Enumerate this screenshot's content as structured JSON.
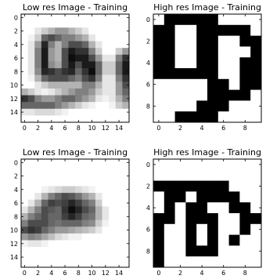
{
  "chart_data": [
    {
      "type": "heatmap",
      "title": "Low res Image - Training",
      "xlabel": "",
      "ylabel": "",
      "colormap": "gray",
      "dark_color": "#000000",
      "light_color": "#ffffff",
      "xlim": [
        -0.5,
        15.5
      ],
      "ylim": [
        15.5,
        -0.5
      ],
      "xticks": [
        0,
        2,
        4,
        6,
        8,
        10,
        12,
        14
      ],
      "yticks": [
        0,
        2,
        4,
        6,
        8,
        10,
        12,
        14
      ],
      "values": [
        [
          0.0,
          0.0,
          0.0,
          0.0,
          0.0,
          0.0,
          0.0,
          0.0,
          0.0,
          0.0,
          0.0,
          0.0,
          0.0,
          0.0,
          0.0,
          0.0
        ],
        [
          0.0,
          0.0,
          0.0,
          0.0,
          0.0,
          0.0,
          0.0,
          0.0,
          0.0,
          0.0,
          0.0,
          0.0,
          0.0,
          0.0,
          0.0,
          0.0
        ],
        [
          0.0,
          0.0,
          0.1,
          0.2,
          0.3,
          0.4,
          0.4,
          0.3,
          0.2,
          0.1,
          0.0,
          0.0,
          0.0,
          0.0,
          0.0,
          0.0
        ],
        [
          0.0,
          0.05,
          0.2,
          0.6,
          0.7,
          0.6,
          0.5,
          0.5,
          0.4,
          0.3,
          0.1,
          0.0,
          0.0,
          0.0,
          0.0,
          0.0
        ],
        [
          0.0,
          0.1,
          0.4,
          0.85,
          0.5,
          0.3,
          0.5,
          0.7,
          0.7,
          0.6,
          0.3,
          0.1,
          0.0,
          0.0,
          0.0,
          0.0
        ],
        [
          0.0,
          0.1,
          0.5,
          0.9,
          0.4,
          0.3,
          0.7,
          0.9,
          0.8,
          0.8,
          0.5,
          0.2,
          0.0,
          0.0,
          0.2,
          0.4
        ],
        [
          0.0,
          0.1,
          0.5,
          0.9,
          0.4,
          0.3,
          0.7,
          0.95,
          0.9,
          0.9,
          0.7,
          0.4,
          0.1,
          0.1,
          0.5,
          0.8
        ],
        [
          0.0,
          0.1,
          0.5,
          0.9,
          0.45,
          0.35,
          0.7,
          0.9,
          0.7,
          0.9,
          0.9,
          0.6,
          0.2,
          0.2,
          0.6,
          0.9
        ],
        [
          0.0,
          0.1,
          0.45,
          0.85,
          0.8,
          0.7,
          0.8,
          0.85,
          0.6,
          0.8,
          0.95,
          0.6,
          0.2,
          0.2,
          0.6,
          0.9
        ],
        [
          0.0,
          0.05,
          0.3,
          0.6,
          0.7,
          0.7,
          0.7,
          0.6,
          0.5,
          0.7,
          0.8,
          0.5,
          0.1,
          0.1,
          0.5,
          0.8
        ],
        [
          0.0,
          0.0,
          0.1,
          0.2,
          0.3,
          0.3,
          0.3,
          0.3,
          0.3,
          0.5,
          0.5,
          0.3,
          0.1,
          0.1,
          0.4,
          0.7
        ],
        [
          0.3,
          0.2,
          0.1,
          0.05,
          0.1,
          0.2,
          0.3,
          0.4,
          0.5,
          0.5,
          0.4,
          0.2,
          0.1,
          0.1,
          0.4,
          0.6
        ],
        [
          0.8,
          0.7,
          0.5,
          0.4,
          0.4,
          0.5,
          0.6,
          0.6,
          0.5,
          0.4,
          0.3,
          0.1,
          0.05,
          0.1,
          0.3,
          0.5
        ],
        [
          0.6,
          0.6,
          0.6,
          0.6,
          0.6,
          0.5,
          0.4,
          0.3,
          0.2,
          0.1,
          0.05,
          0.0,
          0.0,
          0.05,
          0.2,
          0.3
        ],
        [
          0.1,
          0.1,
          0.15,
          0.15,
          0.15,
          0.1,
          0.05,
          0.0,
          0.0,
          0.0,
          0.0,
          0.0,
          0.0,
          0.0,
          0.0,
          0.0
        ],
        [
          0.0,
          0.0,
          0.0,
          0.0,
          0.0,
          0.0,
          0.0,
          0.0,
          0.0,
          0.0,
          0.0,
          0.0,
          0.0,
          0.0,
          0.0,
          0.0
        ]
      ]
    },
    {
      "type": "heatmap",
      "title": "High res Image - Training",
      "xlabel": "",
      "ylabel": "",
      "colormap": "gray",
      "dark_color": "#000000",
      "light_color": "#ffffff",
      "xlim": [
        -0.5,
        9.5
      ],
      "ylim": [
        9.5,
        -0.5
      ],
      "xticks": [
        0,
        2,
        4,
        6,
        8
      ],
      "yticks": [
        0,
        2,
        4,
        6,
        8
      ],
      "values": [
        [
          0,
          1,
          1,
          1,
          1,
          1,
          0,
          0,
          0,
          0
        ],
        [
          1,
          1,
          0,
          0,
          1,
          1,
          1,
          1,
          1,
          0
        ],
        [
          1,
          1,
          0,
          0,
          1,
          1,
          0,
          0,
          1,
          1
        ],
        [
          1,
          1,
          0,
          0,
          1,
          1,
          0,
          0,
          0,
          1
        ],
        [
          1,
          1,
          0,
          0,
          1,
          1,
          0,
          0,
          1,
          1
        ],
        [
          1,
          1,
          1,
          1,
          1,
          1,
          0,
          0,
          1,
          1
        ],
        [
          0,
          0,
          0,
          0,
          0,
          1,
          1,
          0,
          1,
          1
        ],
        [
          0,
          0,
          0,
          0,
          0,
          1,
          1,
          1,
          1,
          0
        ],
        [
          0,
          0,
          0,
          0,
          1,
          1,
          1,
          0,
          0,
          0
        ],
        [
          0,
          0,
          1,
          1,
          1,
          1,
          0,
          0,
          0,
          0
        ]
      ]
    },
    {
      "type": "heatmap",
      "title": "Low res Image - Training",
      "xlabel": "",
      "ylabel": "",
      "colormap": "gray",
      "dark_color": "#000000",
      "light_color": "#ffffff",
      "xlim": [
        -0.5,
        15.5
      ],
      "ylim": [
        15.5,
        -0.5
      ],
      "xticks": [
        0,
        2,
        4,
        6,
        8,
        10,
        12,
        14
      ],
      "yticks": [
        0,
        2,
        4,
        6,
        8,
        10,
        12,
        14
      ],
      "values": [
        [
          0.0,
          0.0,
          0.0,
          0.0,
          0.0,
          0.0,
          0.0,
          0.0,
          0.0,
          0.0,
          0.0,
          0.0,
          0.0,
          0.0,
          0.0,
          0.0
        ],
        [
          0.0,
          0.0,
          0.0,
          0.0,
          0.0,
          0.0,
          0.0,
          0.0,
          0.0,
          0.0,
          0.0,
          0.0,
          0.0,
          0.0,
          0.0,
          0.0
        ],
        [
          0.0,
          0.0,
          0.0,
          0.0,
          0.0,
          0.0,
          0.0,
          0.0,
          0.0,
          0.0,
          0.0,
          0.0,
          0.0,
          0.0,
          0.0,
          0.0
        ],
        [
          0.0,
          0.0,
          0.0,
          0.0,
          0.0,
          0.0,
          0.0,
          0.0,
          0.0,
          0.0,
          0.0,
          0.0,
          0.0,
          0.0,
          0.0,
          0.0
        ],
        [
          0.0,
          0.0,
          0.0,
          0.05,
          0.1,
          0.15,
          0.2,
          0.2,
          0.15,
          0.1,
          0.05,
          0.0,
          0.0,
          0.0,
          0.0,
          0.0
        ],
        [
          0.0,
          0.0,
          0.1,
          0.3,
          0.5,
          0.6,
          0.7,
          0.65,
          0.55,
          0.4,
          0.3,
          0.1,
          0.0,
          0.0,
          0.0,
          0.0
        ],
        [
          0.0,
          0.1,
          0.3,
          0.6,
          0.75,
          0.7,
          0.75,
          0.85,
          0.75,
          0.6,
          0.5,
          0.2,
          0.0,
          0.0,
          0.0,
          0.0
        ],
        [
          0.1,
          0.3,
          0.5,
          0.7,
          0.65,
          0.6,
          0.8,
          0.95,
          0.85,
          0.7,
          0.6,
          0.3,
          0.1,
          0.0,
          0.0,
          0.0
        ],
        [
          0.3,
          0.5,
          0.6,
          0.7,
          0.6,
          0.6,
          0.75,
          0.85,
          0.75,
          0.6,
          0.55,
          0.3,
          0.1,
          0.0,
          0.0,
          0.0
        ],
        [
          0.5,
          0.7,
          0.7,
          0.7,
          0.6,
          0.55,
          0.6,
          0.6,
          0.6,
          0.5,
          0.45,
          0.2,
          0.05,
          0.0,
          0.0,
          0.0
        ],
        [
          0.7,
          0.8,
          0.75,
          0.6,
          0.5,
          0.4,
          0.4,
          0.35,
          0.3,
          0.25,
          0.2,
          0.1,
          0.0,
          0.0,
          0.0,
          0.0
        ],
        [
          0.4,
          0.5,
          0.45,
          0.35,
          0.25,
          0.15,
          0.1,
          0.05,
          0.05,
          0.0,
          0.0,
          0.0,
          0.0,
          0.0,
          0.0,
          0.0
        ],
        [
          0.05,
          0.1,
          0.1,
          0.05,
          0.0,
          0.0,
          0.0,
          0.0,
          0.0,
          0.0,
          0.0,
          0.0,
          0.0,
          0.0,
          0.0,
          0.0
        ],
        [
          0.0,
          0.0,
          0.0,
          0.0,
          0.0,
          0.0,
          0.0,
          0.0,
          0.0,
          0.0,
          0.0,
          0.0,
          0.0,
          0.0,
          0.0,
          0.0
        ],
        [
          0.0,
          0.0,
          0.0,
          0.0,
          0.0,
          0.0,
          0.0,
          0.0,
          0.0,
          0.0,
          0.0,
          0.0,
          0.0,
          0.0,
          0.0,
          0.0
        ],
        [
          0.0,
          0.0,
          0.0,
          0.0,
          0.0,
          0.0,
          0.0,
          0.0,
          0.0,
          0.0,
          0.0,
          0.0,
          0.0,
          0.0,
          0.0,
          0.0
        ]
      ]
    },
    {
      "type": "heatmap",
      "title": "High res Image - Training",
      "xlabel": "",
      "ylabel": "",
      "colormap": "gray",
      "dark_color": "#000000",
      "light_color": "#ffffff",
      "xlim": [
        -0.5,
        9.5
      ],
      "ylim": [
        9.5,
        -0.5
      ],
      "xticks": [
        0,
        2,
        4,
        6,
        8
      ],
      "yticks": [
        0,
        2,
        4,
        6,
        8
      ],
      "values": [
        [
          0,
          0,
          0,
          0,
          0,
          0,
          0,
          0,
          0,
          0
        ],
        [
          0,
          0,
          0,
          0,
          0,
          0,
          0,
          0,
          0,
          0
        ],
        [
          1,
          1,
          1,
          1,
          1,
          1,
          1,
          0,
          0,
          0
        ],
        [
          0,
          1,
          1,
          0,
          1,
          1,
          1,
          1,
          0,
          0
        ],
        [
          0,
          1,
          0,
          1,
          1,
          0,
          0,
          1,
          1,
          0
        ],
        [
          1,
          1,
          0,
          1,
          1,
          1,
          0,
          0,
          1,
          1
        ],
        [
          1,
          0,
          0,
          1,
          0,
          1,
          0,
          0,
          1,
          0
        ],
        [
          1,
          0,
          0,
          1,
          0,
          1,
          0,
          1,
          0,
          0
        ],
        [
          1,
          0,
          0,
          1,
          1,
          1,
          0,
          0,
          0,
          0
        ],
        [
          1,
          0,
          0,
          0,
          0,
          0,
          0,
          0,
          0,
          0
        ]
      ]
    }
  ]
}
